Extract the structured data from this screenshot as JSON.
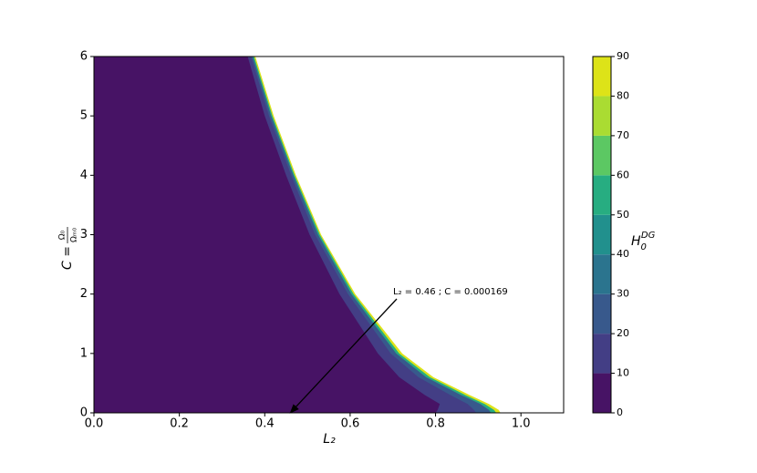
{
  "chart_data": {
    "type": "contourf",
    "xlabel": "L₂",
    "ylabel": {
      "lhs": "C =",
      "num": "Ω₀",
      "den": "Ωₘ₀"
    },
    "xlim": [
      0,
      1.1
    ],
    "ylim": [
      0,
      6
    ],
    "xticks": [
      {
        "value": 0,
        "label": "0.0"
      },
      0.2,
      0.4,
      0.6,
      0.8,
      {
        "value": 1,
        "label": "1.0"
      }
    ],
    "yticks": [
      0,
      1,
      2,
      3,
      4,
      5,
      6
    ],
    "colorbar": {
      "label": {
        "base": "H",
        "sub": "0",
        "sup": "DG"
      },
      "levels": [
        0,
        10,
        20,
        30,
        40,
        50,
        60,
        70,
        80,
        90
      ],
      "colors": [
        "#471365",
        "#433e85",
        "#38598c",
        "#2b748e",
        "#21908d",
        "#27ad81",
        "#5cc863",
        "#aadc32",
        "#dde318"
      ]
    },
    "contour_C": [
      6,
      5,
      4,
      3,
      2,
      1,
      0.6,
      0.3,
      0.15,
      0.05,
      0
    ],
    "contours": [
      {
        "level": 90,
        "L": [
          0.378,
          0.421,
          0.473,
          0.532,
          0.612,
          0.722,
          0.795,
          0.88,
          0.925,
          0.948,
          0.952
        ]
      },
      {
        "level": 60,
        "L": [
          0.375,
          0.418,
          0.47,
          0.529,
          0.608,
          0.715,
          0.787,
          0.87,
          0.915,
          0.937,
          0.942
        ]
      },
      {
        "level": 30,
        "L": [
          0.372,
          0.415,
          0.467,
          0.525,
          0.603,
          0.708,
          0.778,
          0.86,
          0.905,
          0.925,
          0.93
        ]
      },
      {
        "level": 20,
        "L": [
          0.368,
          0.41,
          0.462,
          0.518,
          0.595,
          0.695,
          0.76,
          0.835,
          0.875,
          0.89,
          0.895
        ]
      },
      {
        "level": 10,
        "L": [
          0.36,
          0.4,
          0.45,
          0.505,
          0.575,
          0.665,
          0.715,
          0.775,
          0.81,
          0.805,
          0.8
        ]
      }
    ],
    "annotation": {
      "text": "L₂ = 0.46 ; C = 0.000169",
      "x": 0.46,
      "y": 0.000169
    }
  }
}
